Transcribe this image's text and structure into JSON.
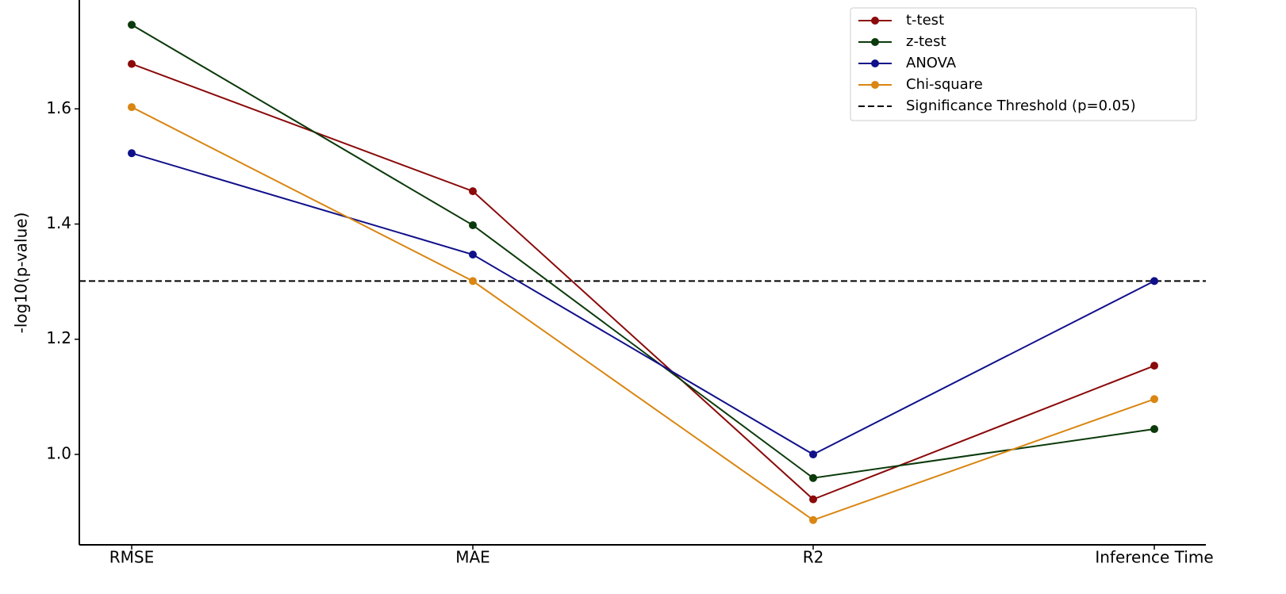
{
  "chart_data": {
    "type": "line",
    "categories": [
      "RMSE",
      "MAE",
      "R2",
      "Inference Time"
    ],
    "ylabel": "-log10(p-value)",
    "series": [
      {
        "name": "t-test",
        "color": "#8b0a0a",
        "values": [
          1.678,
          1.457,
          0.922,
          1.154
        ]
      },
      {
        "name": "z-test",
        "color": "#0b3a0b",
        "values": [
          1.746,
          1.398,
          0.959,
          1.044
        ]
      },
      {
        "name": "ANOVA",
        "color": "#10108a",
        "values": [
          1.523,
          1.347,
          1.0,
          1.301
        ]
      },
      {
        "name": "Chi-square",
        "color": "#d98612",
        "values": [
          1.603,
          1.301,
          0.886,
          1.096
        ]
      }
    ],
    "threshold": {
      "name": "Significance Threshold (p=0.05)",
      "value": 1.301,
      "color": "#000000",
      "style": "dashed"
    },
    "ylim": [
      0.843,
      1.789
    ],
    "yticks": [
      {
        "value": 1.0,
        "label": "1.0"
      },
      1.2,
      1.4,
      1.6
    ],
    "legend": "upper right",
    "grid": false
  }
}
